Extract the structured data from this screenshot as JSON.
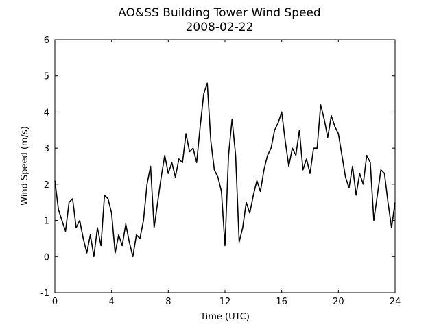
{
  "chart_data": {
    "type": "line",
    "title": "AO&SS Building Tower Wind Speed",
    "subtitle": "2008-02-22",
    "xlabel": "Time (UTC)",
    "ylabel": "Wind Speed (m/s)",
    "x": [
      0,
      0.25,
      0.5,
      0.75,
      1,
      1.25,
      1.5,
      1.75,
      2,
      2.25,
      2.5,
      2.75,
      3,
      3.25,
      3.5,
      3.75,
      4,
      4.25,
      4.5,
      4.75,
      5,
      5.25,
      5.5,
      5.75,
      6,
      6.25,
      6.5,
      6.75,
      7,
      7.25,
      7.5,
      7.75,
      8,
      8.25,
      8.5,
      8.75,
      9,
      9.25,
      9.5,
      9.75,
      10,
      10.25,
      10.5,
      10.75,
      11,
      11.25,
      11.5,
      11.75,
      12,
      12.25,
      12.5,
      12.75,
      13,
      13.25,
      13.5,
      13.75,
      14,
      14.25,
      14.5,
      14.75,
      15,
      15.25,
      15.5,
      15.75,
      16,
      16.25,
      16.5,
      16.75,
      17,
      17.25,
      17.5,
      17.75,
      18,
      18.25,
      18.5,
      18.75,
      19,
      19.25,
      19.5,
      19.75,
      20,
      20.25,
      20.5,
      20.75,
      21,
      21.25,
      21.5,
      21.75,
      22,
      22.25,
      22.5,
      22.75,
      23,
      23.25,
      23.5,
      23.75,
      24
    ],
    "series": [
      {
        "name": "Wind Speed",
        "color": "#000000",
        "values": [
          2.1,
          1.3,
          1.0,
          0.7,
          1.5,
          1.6,
          0.8,
          1.0,
          0.5,
          0.1,
          0.6,
          0.0,
          0.8,
          0.3,
          1.7,
          1.6,
          1.2,
          0.1,
          0.6,
          0.3,
          0.9,
          0.4,
          0.0,
          0.6,
          0.5,
          1.0,
          2.0,
          2.5,
          0.8,
          1.5,
          2.2,
          2.8,
          2.3,
          2.6,
          2.2,
          2.7,
          2.6,
          3.4,
          2.9,
          3.0,
          2.6,
          3.6,
          4.5,
          4.8,
          3.2,
          2.4,
          2.2,
          1.8,
          0.3,
          2.8,
          3.8,
          2.8,
          0.4,
          0.8,
          1.5,
          1.2,
          1.7,
          2.1,
          1.8,
          2.4,
          2.8,
          3.0,
          3.5,
          3.7,
          4.0,
          3.2,
          2.5,
          3.0,
          2.8,
          3.5,
          2.4,
          2.7,
          2.3,
          3.0,
          3.0,
          4.2,
          3.8,
          3.3,
          3.9,
          3.6,
          3.4,
          2.8,
          2.2,
          1.9,
          2.5,
          1.7,
          2.3,
          2.0,
          2.8,
          2.6,
          1.0,
          1.7,
          2.4,
          2.3,
          1.5,
          0.8,
          1.5
        ]
      }
    ],
    "xlim": [
      0,
      24
    ],
    "xticks": [
      0,
      4,
      8,
      12,
      16,
      20,
      24
    ],
    "ylim": [
      -1,
      6
    ],
    "yticks": [
      -1,
      0,
      1,
      2,
      3,
      4,
      5,
      6
    ]
  }
}
